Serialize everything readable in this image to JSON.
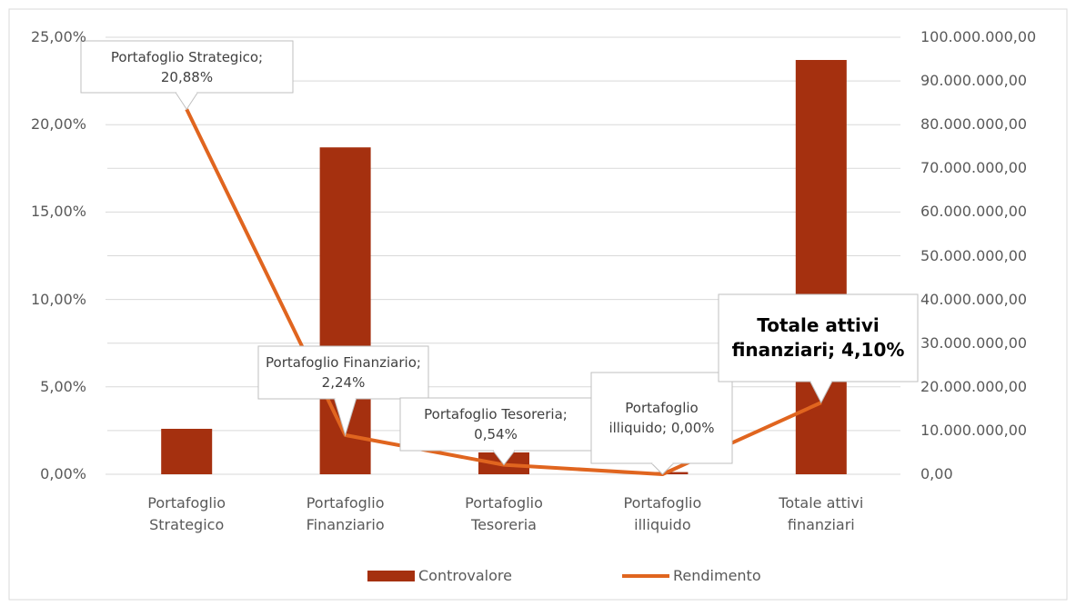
{
  "chart_data": {
    "type": "bar-line",
    "categories": [
      "Portafoglio Strategico",
      "Portafoglio Finanziario",
      "Portafoglio Tesoreria",
      "Portafoglio illiquido",
      "Totale attivi finanziari"
    ],
    "series": [
      {
        "name": "Controvalore",
        "type": "bar",
        "axis": "y2",
        "color": "#a5300f",
        "values": [
          10400000,
          74800000,
          5000000,
          500000,
          94800000
        ]
      },
      {
        "name": "Rendimento",
        "type": "line",
        "axis": "y",
        "color": "#e0651f",
        "values": [
          20.88,
          2.24,
          0.54,
          0.0,
          4.1
        ],
        "value_labels": [
          "Portafoglio Strategico; 20,88%",
          "Portafoglio Finanziario; 2,24%",
          "Portafoglio Tesoreria; 0,54%",
          "Portafoglio illiquido; 0,00%",
          "Totale attivi finanziari; 4,10%"
        ]
      }
    ],
    "ylim": [
      0,
      25
    ],
    "yticks": [
      {
        "value": 0,
        "label": "0,00%"
      },
      {
        "value": 5,
        "label": "5,00%"
      },
      {
        "value": 10,
        "label": "10,00%"
      },
      {
        "value": 15,
        "label": "15,00%"
      },
      {
        "value": 20,
        "label": "20,00%"
      },
      {
        "value": 25,
        "label": "25,00%"
      }
    ],
    "y2lim": [
      0,
      100000000
    ],
    "y2ticks": [
      {
        "value": 0,
        "label": "0,00"
      },
      {
        "value": 10000000,
        "label": "10.000.000,00"
      },
      {
        "value": 20000000,
        "label": "20.000.000,00"
      },
      {
        "value": 30000000,
        "label": "30.000.000,00"
      },
      {
        "value": 40000000,
        "label": "40.000.000,00"
      },
      {
        "value": 50000000,
        "label": "50.000.000,00"
      },
      {
        "value": 60000000,
        "label": "60.000.000,00"
      },
      {
        "value": 70000000,
        "label": "70.000.000,00"
      },
      {
        "value": 80000000,
        "label": "80.000.000,00"
      },
      {
        "value": 90000000,
        "label": "90.000.000,00"
      },
      {
        "value": 100000000,
        "label": "100.000.000,00"
      }
    ],
    "grid": true,
    "legend": "bottom"
  }
}
